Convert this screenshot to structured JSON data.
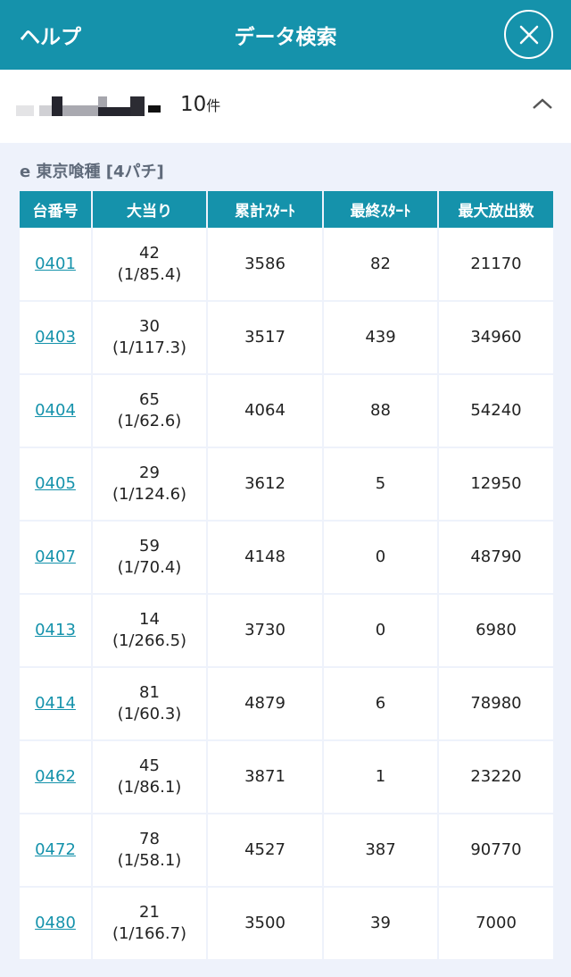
{
  "header": {
    "help_label": "ヘルプ",
    "title": "データ検索",
    "close_icon": "close-icon",
    "accent": "#1592ab"
  },
  "summary": {
    "count": "10",
    "count_unit": "件"
  },
  "machine_name": "e 東京喰種 [4パチ]",
  "table": {
    "columns": [
      "台番号",
      "大当り",
      "累計ｽﾀｰﾄ",
      "最終ｽﾀｰﾄ",
      "最大放出数"
    ],
    "rows": [
      {
        "no": "0401",
        "hits": "42",
        "ratio": "(1/85.4)",
        "total": "3586",
        "last": "82",
        "max": "21170"
      },
      {
        "no": "0403",
        "hits": "30",
        "ratio": "(1/117.3)",
        "total": "3517",
        "last": "439",
        "max": "34960"
      },
      {
        "no": "0404",
        "hits": "65",
        "ratio": "(1/62.6)",
        "total": "4064",
        "last": "88",
        "max": "54240"
      },
      {
        "no": "0405",
        "hits": "29",
        "ratio": "(1/124.6)",
        "total": "3612",
        "last": "5",
        "max": "12950"
      },
      {
        "no": "0407",
        "hits": "59",
        "ratio": "(1/70.4)",
        "total": "4148",
        "last": "0",
        "max": "48790"
      },
      {
        "no": "0413",
        "hits": "14",
        "ratio": "(1/266.5)",
        "total": "3730",
        "last": "0",
        "max": "6980"
      },
      {
        "no": "0414",
        "hits": "81",
        "ratio": "(1/60.3)",
        "total": "4879",
        "last": "6",
        "max": "78980"
      },
      {
        "no": "0462",
        "hits": "45",
        "ratio": "(1/86.1)",
        "total": "3871",
        "last": "1",
        "max": "23220"
      },
      {
        "no": "0472",
        "hits": "78",
        "ratio": "(1/58.1)",
        "total": "4527",
        "last": "387",
        "max": "90770"
      },
      {
        "no": "0480",
        "hits": "21",
        "ratio": "(1/166.7)",
        "total": "3500",
        "last": "39",
        "max": "7000"
      }
    ]
  }
}
